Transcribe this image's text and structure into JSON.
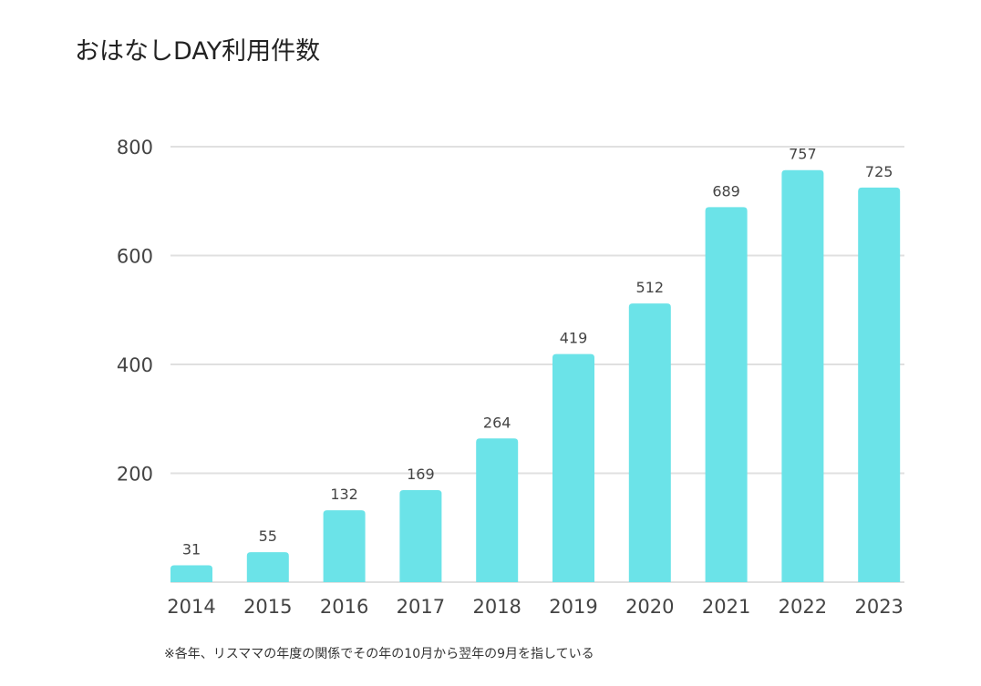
{
  "title": "おはなしDAY利用件数",
  "footnote": "※各年、リスママの年度の関係でその年の10月から翌年の9月を指している",
  "chart_data": {
    "type": "bar",
    "title": "おはなしDAY利用件数",
    "xlabel": "",
    "ylabel": "",
    "categories": [
      "2014",
      "2015",
      "2016",
      "2017",
      "2018",
      "2019",
      "2020",
      "2021",
      "2022",
      "2023"
    ],
    "values": [
      31,
      55,
      132,
      169,
      264,
      419,
      512,
      689,
      757,
      725
    ],
    "ylim": [
      0,
      800
    ],
    "yticks": [
      200,
      400,
      600,
      800
    ],
    "grid": true,
    "legend": "none",
    "bar_color": "#6be3e8",
    "grid_color": "#e0e0e0"
  }
}
